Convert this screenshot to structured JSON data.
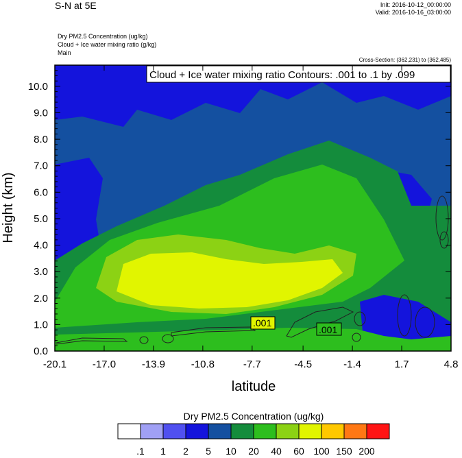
{
  "header": {
    "plot_title": "S-N at 5E",
    "init": "Init: 2016-10-12_00:00:00",
    "valid": "Valid: 2016-10-16_03:00:00",
    "fields": [
      "Dry PM2.5 Concentration   (ug/kg)",
      "Cloud + Ice water mixing ratio   (g/kg)",
      "Main"
    ],
    "cross_section": "Cross-Section: (362,231) to (362,485)"
  },
  "chart_data": {
    "type": "heatmap",
    "xlabel": "latitude",
    "ylabel": "Height (km)",
    "x_ticks": [
      "-20.1",
      "-17.0",
      "-13.9",
      "-10.8",
      "-7.7",
      "-4.5",
      "-1.4",
      "1.7",
      "4.8"
    ],
    "x_range": [
      -20.1,
      4.8
    ],
    "y_ticks": [
      "0.0",
      "1.0",
      "2.0",
      "3.0",
      "4.0",
      "5.0",
      "6.0",
      "7.0",
      "8.0",
      "9.0",
      "10.0"
    ],
    "y_range": [
      0.0,
      10.8
    ],
    "contour_info": "Cloud + Ice water mixing ratio Contours: .001 to .1 by .099",
    "contour_labels": [
      ".001",
      ".001"
    ],
    "colorbar": {
      "title": "Dry PM2.5 Concentration  (ug/kg)",
      "labels": [
        ".1",
        "1",
        "2",
        "5",
        "10",
        "20",
        "40",
        "60",
        "100",
        "150",
        "200"
      ],
      "colors": [
        "#ffffff",
        "#a0a0f5",
        "#5050f0",
        "#1414dc",
        "#1450a0",
        "#148c3c",
        "#2dbe1e",
        "#8cd214",
        "#e1f500",
        "#ffc800",
        "#ff7814",
        "#ff1414"
      ]
    }
  }
}
